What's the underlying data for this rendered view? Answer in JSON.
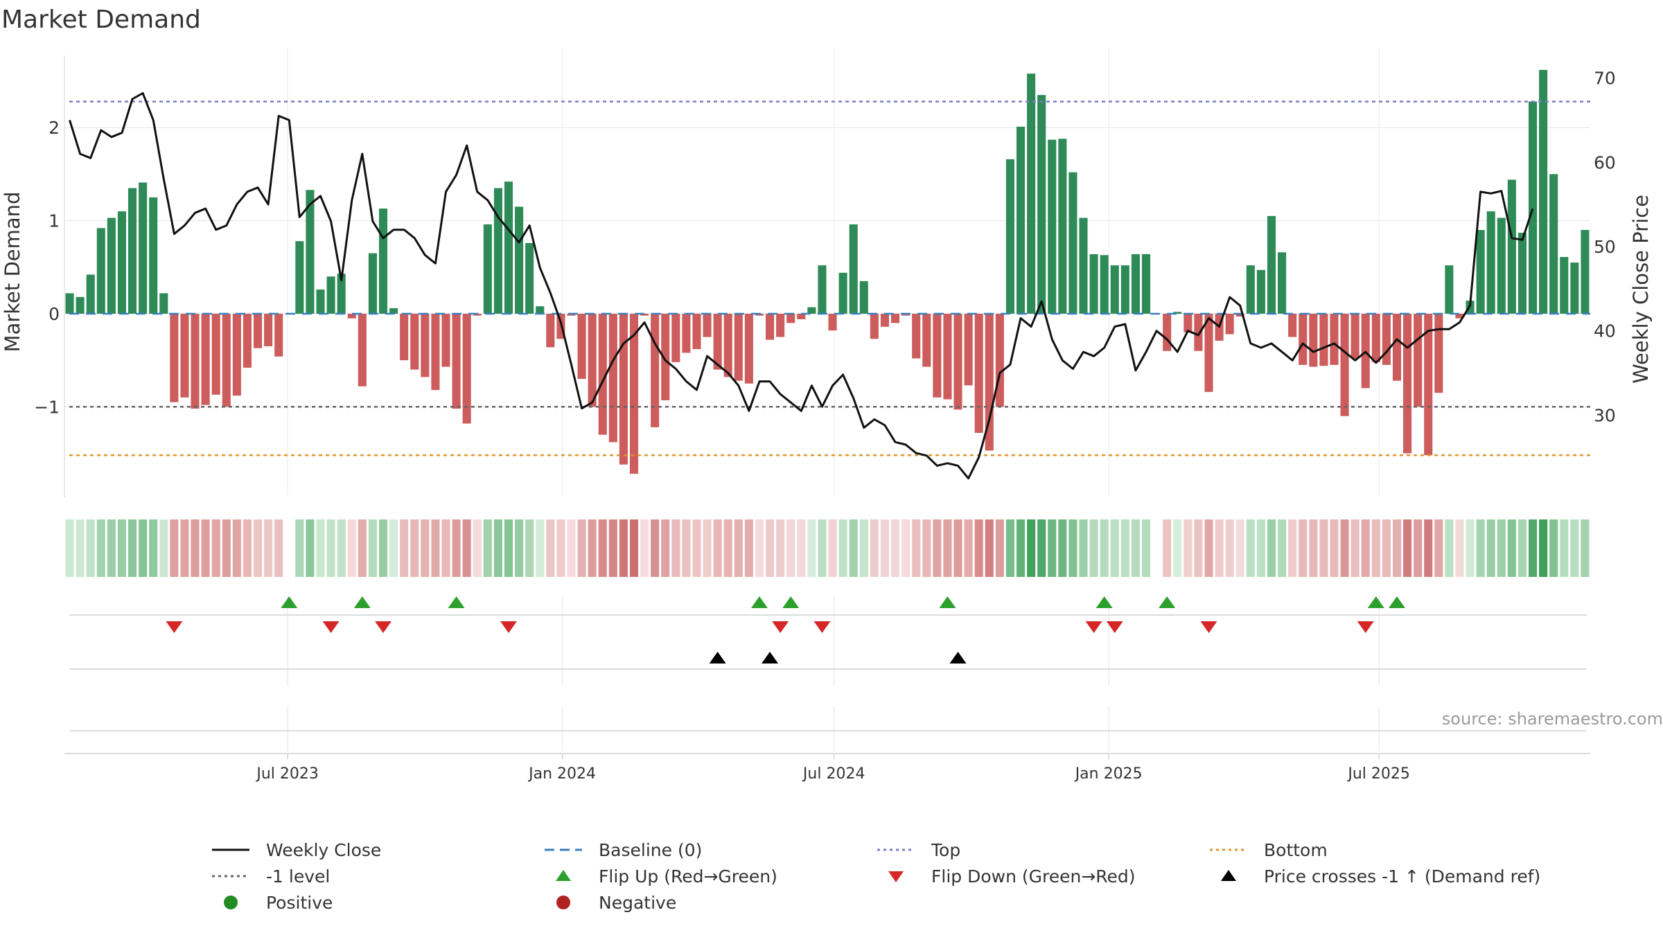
{
  "page": {
    "title": "Market Demand",
    "source": "source: sharemaestro.com"
  },
  "chart_data": {
    "type": "bar",
    "title": "Market Demand",
    "ylabel": "Market Demand",
    "y2label": "Weekly Close Price",
    "ylim": [
      -1.95,
      2.85
    ],
    "y2lim": [
      20.5,
      73.5
    ],
    "yticks": [
      -1,
      0,
      1,
      2
    ],
    "ytick_labels": [
      "−1",
      "0",
      "1",
      "2"
    ],
    "y2ticks": [
      30,
      40,
      50,
      60,
      70
    ],
    "x_start": "2023-02-05",
    "x_interval_days": 7,
    "xticks": [
      "2023-07-01",
      "2024-01-01",
      "2024-07-01",
      "2025-01-01",
      "2025-07-01"
    ],
    "xtick_labels": [
      "Jul 2023",
      "Jan 2024",
      "Jul 2024",
      "Jan 2025",
      "Jul 2025"
    ],
    "reference_lines": {
      "top": 2.28,
      "minus_one": -1,
      "bottom": -1.52,
      "baseline": 0
    },
    "demand": [
      0.22,
      0.18,
      0.42,
      0.92,
      1.03,
      1.1,
      1.35,
      1.41,
      1.25,
      0.22,
      -0.95,
      -0.9,
      -1.02,
      -0.98,
      -0.87,
      -1.0,
      -0.88,
      -0.58,
      -0.37,
      -0.35,
      -0.46,
      0.0,
      0.78,
      1.33,
      0.26,
      0.4,
      0.43,
      -0.05,
      -0.78,
      0.65,
      1.13,
      0.06,
      -0.5,
      -0.6,
      -0.68,
      -0.82,
      -0.57,
      -1.02,
      -1.18,
      -0.02,
      0.96,
      1.35,
      1.42,
      1.15,
      0.76,
      0.08,
      -0.36,
      -0.27,
      -0.02,
      -0.7,
      -1.0,
      -1.3,
      -1.38,
      -1.62,
      -1.72,
      -0.02,
      -1.22,
      -0.93,
      -0.52,
      -0.42,
      -0.38,
      -0.25,
      -0.6,
      -0.68,
      -0.72,
      -0.75,
      -0.02,
      -0.28,
      -0.25,
      -0.1,
      -0.06,
      0.07,
      0.52,
      -0.18,
      0.44,
      0.96,
      0.35,
      -0.27,
      -0.14,
      -0.1,
      -0.02,
      -0.48,
      -0.57,
      -0.9,
      -0.92,
      -1.03,
      -0.77,
      -1.28,
      -1.47,
      -1.0,
      1.66,
      2.01,
      2.58,
      2.35,
      1.87,
      1.88,
      1.52,
      1.03,
      0.64,
      0.63,
      0.52,
      0.52,
      0.64,
      0.64,
      0.0,
      -0.4,
      0.02,
      -0.2,
      -0.4,
      -0.84,
      -0.29,
      -0.22,
      -0.03,
      0.52,
      0.47,
      1.05,
      0.66,
      -0.25,
      -0.55,
      -0.57,
      -0.56,
      -0.55,
      -1.1,
      -0.48,
      -0.8,
      -0.52,
      -0.55,
      -0.72,
      -1.5,
      -1.0,
      -1.52,
      -0.85,
      0.52,
      -0.05,
      0.14,
      0.9,
      1.1,
      1.03,
      1.44,
      0.87,
      2.28,
      2.62,
      1.5,
      0.61,
      0.55,
      0.9
    ],
    "close": [
      65,
      61,
      60.5,
      63.8,
      63,
      63.5,
      67.5,
      68.2,
      65,
      58,
      51.5,
      52.5,
      54,
      54.5,
      52,
      52.5,
      55,
      56.5,
      57,
      55,
      65.5,
      65,
      53.5,
      55,
      56,
      53,
      46,
      55.5,
      61,
      53,
      51,
      52,
      52,
      51,
      49,
      48,
      56.5,
      58.5,
      62,
      56.5,
      55.5,
      53.5,
      52,
      50.5,
      52.5,
      47.5,
      44.5,
      41,
      36,
      30.8,
      31.5,
      34,
      36.5,
      38.5,
      39.5,
      41,
      38.5,
      36.5,
      35.5,
      34,
      33,
      37,
      36,
      35,
      33.5,
      30.5,
      34,
      34,
      32.5,
      31.5,
      30.5,
      33.5,
      31,
      33.5,
      34.8,
      32,
      28.5,
      29.5,
      28.8,
      26.8,
      26.5,
      25.5,
      25.2,
      24,
      24.3,
      24,
      22.5,
      25,
      29.5,
      35,
      36,
      41.5,
      40.5,
      43.5,
      39,
      36.5,
      35.5,
      37.5,
      37,
      38,
      40.5,
      40.8,
      35.3,
      37.5,
      40,
      39,
      37.5,
      40,
      39.5,
      41.5,
      40.5,
      44,
      43,
      38.5,
      38,
      38.5,
      37.5,
      36.5,
      38.5,
      37.5,
      38,
      38.5,
      37.5,
      36.5,
      37.5,
      36.2,
      37.5,
      39,
      38,
      39,
      40,
      40.2,
      40.2,
      41,
      43,
      56.5,
      56.3,
      56.6,
      51,
      50.8,
      54.5
    ],
    "heat_strip": "Weekly demand heat strip: green shades = positive demand, red shades = negative demand",
    "flip_up_x": [
      21,
      28,
      37,
      66,
      69,
      84,
      99,
      105,
      125,
      127
    ],
    "flip_down_x": [
      10,
      25,
      30,
      42,
      68,
      72,
      98,
      100,
      109,
      124
    ],
    "price_cross_x": [
      62,
      67,
      85
    ],
    "legend": {
      "weekly_close": "Weekly Close",
      "baseline": "Baseline (0)",
      "top": "Top",
      "bottom": "Bottom",
      "minus_one": "-1 level",
      "flip_up": "Flip Up (Red→Green)",
      "flip_down": "Flip Down (Green→Red)",
      "price_cross": "Price crosses -1 ↑ (Demand ref)",
      "positive": "Positive",
      "negative": "Negative"
    },
    "colors": {
      "positive": "#2e8b57",
      "negative": "#cd5c5c",
      "close": "#111111",
      "top": "#7b7bc8",
      "bottom": "#e0952b",
      "minus_one": "#666666",
      "baseline": "#3a7fbf",
      "flip_up": "#2ca02c",
      "flip_down": "#d62728",
      "price_cross": "#000000",
      "legend_positive": "#228b22",
      "legend_negative": "#b22222"
    }
  }
}
